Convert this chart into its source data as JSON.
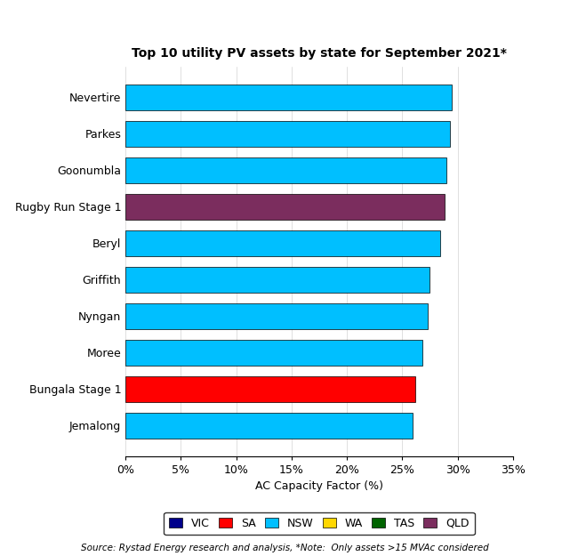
{
  "title": "Top 10 utility PV assets by state for September 2021*",
  "farms": [
    "Nevertire",
    "Parkes",
    "Goonumbla",
    "Rugby Run Stage 1",
    "Beryl",
    "Griffith",
    "Nyngan",
    "Moree",
    "Bungala Stage 1",
    "Jemalong"
  ],
  "values": [
    29.5,
    29.3,
    29.0,
    28.8,
    28.4,
    27.5,
    27.3,
    26.8,
    26.2,
    25.9
  ],
  "colors": [
    "#00BFFF",
    "#00BFFF",
    "#00BFFF",
    "#7B2D5E",
    "#00BFFF",
    "#00BFFF",
    "#00BFFF",
    "#00BFFF",
    "#FF0000",
    "#00BFFF"
  ],
  "xlabel": "AC Capacity Factor (%)",
  "xlim": [
    0,
    35
  ],
  "xticks": [
    0,
    5,
    10,
    15,
    20,
    25,
    30,
    35
  ],
  "xtick_labels": [
    "0%",
    "5%",
    "10%",
    "15%",
    "20%",
    "25%",
    "30%",
    "35%"
  ],
  "legend_entries": [
    {
      "label": "VIC",
      "color": "#00008B"
    },
    {
      "label": "SA",
      "color": "#FF0000"
    },
    {
      "label": "NSW",
      "color": "#00BFFF"
    },
    {
      "label": "WA",
      "color": "#FFD700"
    },
    {
      "label": "TAS",
      "color": "#006400"
    },
    {
      "label": "QLD",
      "color": "#7B2D5E"
    }
  ],
  "source_text": "Source: Rystad Energy research and analysis, *Note:  Only assets >15 MVAc considered",
  "bar_edge_color": "#000000",
  "bar_linewidth": 0.5,
  "background_color": "#FFFFFF",
  "title_fontsize": 10,
  "axis_fontsize": 9,
  "tick_fontsize": 9,
  "legend_fontsize": 9,
  "source_fontsize": 7.5
}
